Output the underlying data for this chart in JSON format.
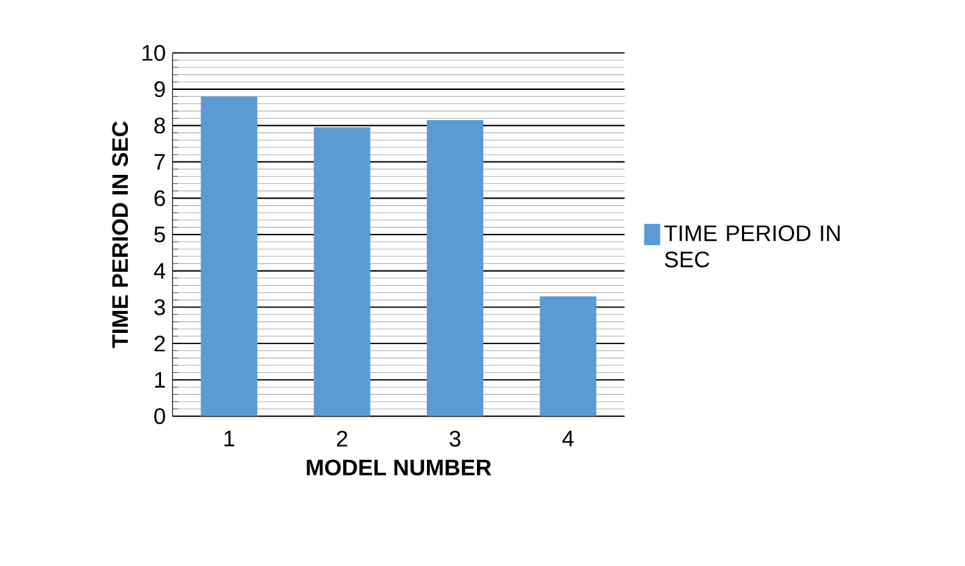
{
  "chart_data": {
    "type": "bar",
    "xlabel": "MODEL NUMBER",
    "ylabel": "TIME PERIOD IN SEC",
    "categories": [
      "1",
      "2",
      "3",
      "4"
    ],
    "series": [
      {
        "name": "TIME PERIOD IN SEC",
        "color": "#5b9bd5",
        "values": [
          8.8,
          7.95,
          8.15,
          3.3
        ]
      }
    ],
    "ylim": [
      0,
      10
    ],
    "yticks": [
      0,
      1,
      2,
      3,
      4,
      5,
      6,
      7,
      8,
      9,
      10
    ],
    "grid": "y",
    "legend": "right"
  }
}
